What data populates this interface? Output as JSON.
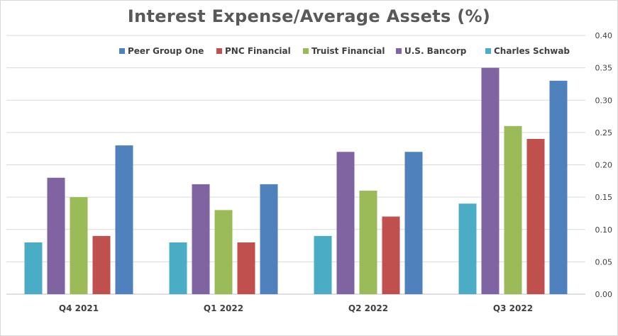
{
  "chart_data": {
    "type": "bar",
    "title": "Interest Expense/Average Assets (%)",
    "categories": [
      "Q4 2021",
      "Q1 2022",
      "Q2 2022",
      "Q3 2022"
    ],
    "series": [
      {
        "name": "Peer Group One",
        "color": "#4f81bd",
        "values": [
          0.23,
          0.17,
          0.22,
          0.33
        ]
      },
      {
        "name": "PNC Financial",
        "color": "#c0504d",
        "values": [
          0.09,
          0.08,
          0.12,
          0.24
        ]
      },
      {
        "name": "Truist Financial",
        "color": "#9bbb59",
        "values": [
          0.15,
          0.13,
          0.16,
          0.26
        ]
      },
      {
        "name": "U.S. Bancorp",
        "color": "#8064a2",
        "values": [
          0.18,
          0.17,
          0.22,
          0.35
        ]
      },
      {
        "name": "Charles Schwab",
        "color": "#4bacc6",
        "values": [
          0.08,
          0.08,
          0.09,
          0.14
        ]
      }
    ],
    "bar_order": [
      "Charles Schwab",
      "U.S. Bancorp",
      "Truist Financial",
      "PNC Financial",
      "Peer Group One"
    ],
    "yaxis": {
      "position": "right",
      "ticks": [
        "0.00",
        "0.05",
        "0.10",
        "0.15",
        "0.20",
        "0.25",
        "0.30",
        "0.35",
        "0.40"
      ]
    },
    "ylim": [
      0,
      0.4
    ],
    "grid": true,
    "legend": "top"
  }
}
